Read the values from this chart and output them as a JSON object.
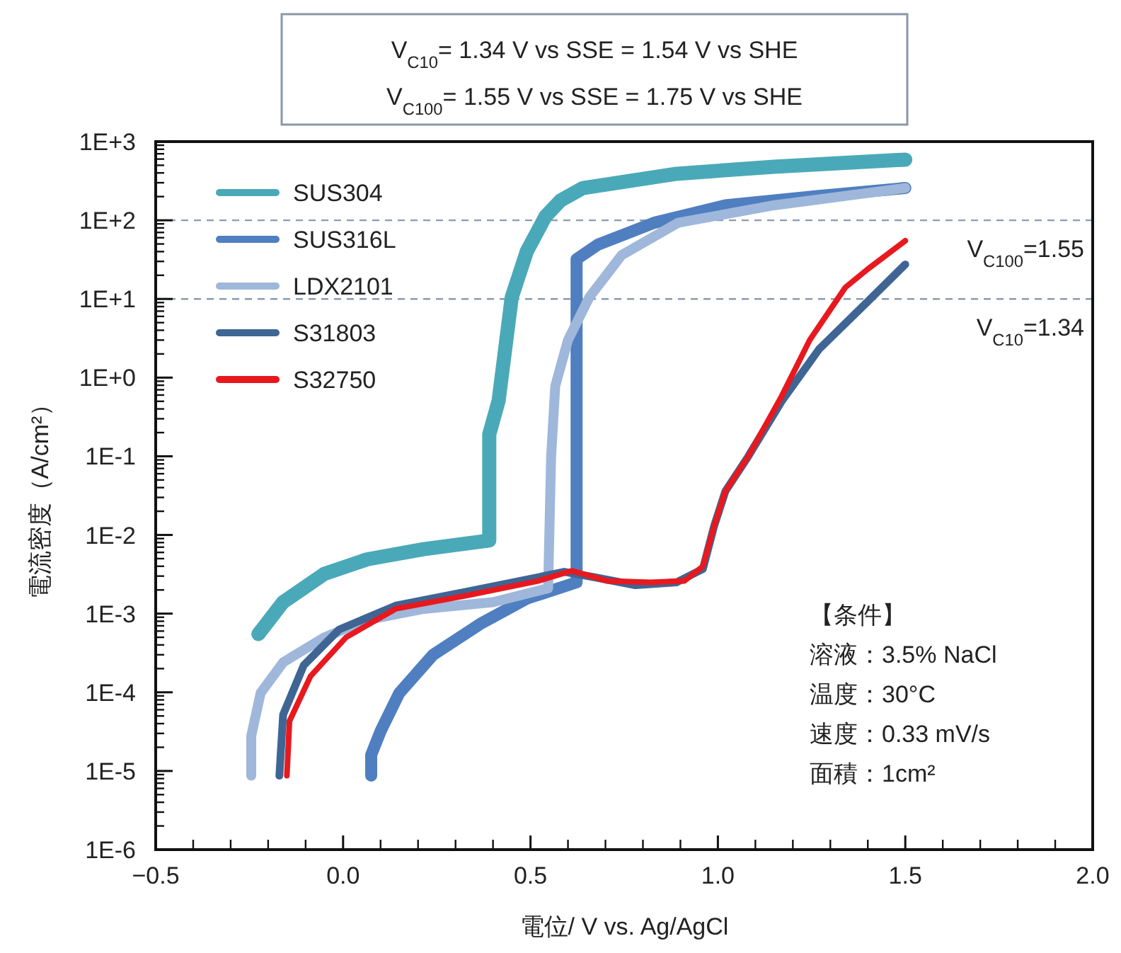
{
  "chart_data": {
    "type": "line",
    "title": "V$_{C10}$= 1.34 V vs SSE = 1.54 V vs SHE",
    "subtitle": "V$_{C100}$= 1.55 V vs SSE = 1.75 V vs SHE",
    "xlabel": "電位/ V vs. Ag/AgCl",
    "ylabel": "電流密度（A/cm²）",
    "log": "y",
    "grid": false,
    "legend": "top left",
    "line_style": "solid",
    "marker": "none",
    "xlim": [
      -0.5,
      2.0
    ],
    "xticks": [
      {
        "value": -0.5,
        "label": "−0.5"
      },
      {
        "value": 0,
        "label": "0.0"
      },
      {
        "value": 0.5,
        "label": "0.5"
      },
      {
        "value": 1.0,
        "label": "1.0"
      },
      {
        "value": 1.5,
        "label": "1.5"
      },
      {
        "value": 2.0,
        "label": "2.0"
      }
    ],
    "ylim": [
      1e-06,
      1000
    ],
    "yticks": [
      {
        "value": 1e-06,
        "label": "1E-6"
      },
      {
        "value": 1e-05,
        "label": "1E-5"
      },
      {
        "value": 0.0001,
        "label": "1E-4"
      },
      {
        "value": 0.001,
        "label": "1E-3"
      },
      {
        "value": 0.01,
        "label": "1E-2"
      },
      {
        "value": 0.1,
        "label": "1E-1"
      },
      {
        "value": 1,
        "label": "1E+0"
      },
      {
        "value": 10,
        "label": "1E+1"
      },
      {
        "value": 100,
        "label": "1E+2"
      },
      {
        "value": 1000,
        "label": "1E+3"
      }
    ],
    "ref_lines": [
      {
        "axis": "y",
        "value": 100,
        "color": "#8a9bb0",
        "line_style": "dashed",
        "label": "V$_{C100}$=1.55"
      },
      {
        "axis": "y",
        "value": 10,
        "color": "#8a9bb0",
        "line_style": "dashed",
        "label": "V$_{C10}$=1.34"
      }
    ],
    "annotations": [
      "【条件】",
      "溶液：3.5% NaCl",
      "温度：30°C",
      "速度：0.33 mV/s",
      "面積：1cm²"
    ],
    "series": [
      {
        "name": "SUS304",
        "color": "#4aa9b8",
        "x": [
          -0.226,
          -0.16,
          -0.05,
          0.064,
          0.215,
          0.39,
          0.39,
          0.415,
          0.45,
          0.49,
          0.54,
          0.58,
          0.64,
          0.89,
          1.15,
          1.5
        ],
        "values": [
          0.00055,
          0.0014,
          0.0032,
          0.0049,
          0.0066,
          0.0085,
          0.19,
          0.51,
          10.5,
          40,
          112,
          178,
          257,
          390,
          480,
          590
        ]
      },
      {
        "name": "SUS316L",
        "color": "#4f7fc0",
        "x": [
          0.075,
          0.075,
          0.1,
          0.15,
          0.24,
          0.37,
          0.49,
          0.6,
          0.623,
          0.623,
          0.68,
          0.83,
          1.02,
          1.27,
          1.5
        ],
        "values": [
          8.7e-06,
          1.6e-05,
          3.2e-05,
          9.8e-05,
          0.0003,
          0.00076,
          0.00155,
          0.0023,
          0.0025,
          32,
          49,
          93,
          155,
          204,
          257
        ]
      },
      {
        "name": "LDX2101",
        "color": "#9fb7da",
        "x": [
          -0.245,
          -0.245,
          -0.22,
          -0.16,
          -0.05,
          0.064,
          0.215,
          0.4,
          0.547,
          0.555,
          0.566,
          0.6,
          0.657,
          0.743,
          0.894,
          1.15,
          1.5
        ],
        "values": [
          8.7e-06,
          2.8e-05,
          9.8e-05,
          0.00024,
          0.0005,
          0.00083,
          0.00115,
          0.0014,
          0.0021,
          0.098,
          0.78,
          3.0,
          10.5,
          36,
          93,
          155,
          257
        ]
      },
      {
        "name": "S31803",
        "color": "#3e6594",
        "x": [
          -0.17,
          -0.16,
          -0.105,
          -0.01,
          0.14,
          0.33,
          0.52,
          0.59,
          0.67,
          0.78,
          0.89,
          0.96,
          0.99,
          1.02,
          1.08,
          1.17,
          1.27,
          1.4,
          1.5
        ],
        "values": [
          8.7e-06,
          5.2e-05,
          0.00022,
          0.00063,
          0.00126,
          0.0019,
          0.0029,
          0.0034,
          0.0029,
          0.0023,
          0.0025,
          0.0037,
          0.013,
          0.036,
          0.098,
          0.5,
          2.3,
          9.3,
          27.5
        ]
      },
      {
        "name": "S32750",
        "color": "#e8191e",
        "x": [
          -0.15,
          -0.143,
          -0.087,
          0.008,
          0.14,
          0.33,
          0.52,
          0.61,
          0.706,
          0.82,
          0.91,
          0.96,
          0.99,
          1.02,
          1.08,
          1.17,
          1.245,
          1.34,
          1.4,
          1.5
        ],
        "values": [
          8.7e-06,
          4.3e-05,
          0.00016,
          0.0005,
          0.00115,
          0.0017,
          0.0026,
          0.0035,
          0.0026,
          0.0025,
          0.0026,
          0.004,
          0.013,
          0.036,
          0.098,
          0.58,
          3.0,
          14,
          24,
          55
        ]
      }
    ]
  }
}
